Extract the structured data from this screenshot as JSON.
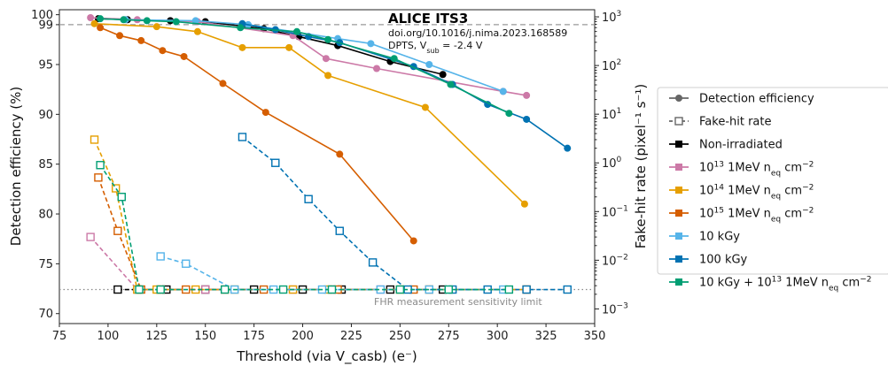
{
  "chart_data": {
    "type": "line",
    "xlabel": "Threshold (via V_casb) (e⁻)",
    "ylabel_left": "Detection efficiency (%)",
    "ylabel_right": "Fake-hit rate (pixel⁻¹ s⁻¹)",
    "xlim": [
      75,
      350
    ],
    "ylim_left": [
      69,
      100.5
    ],
    "ylim_right_log": [
      0.0005,
      1400
    ],
    "x_ticks": [
      75,
      100,
      125,
      150,
      175,
      200,
      225,
      250,
      275,
      300,
      325,
      350
    ],
    "y_left_ticks": [
      70,
      75,
      80,
      85,
      90,
      95,
      99,
      100
    ],
    "y_right_ticks": [
      {
        "value": 0.001,
        "base": "10",
        "exp": "−3"
      },
      {
        "value": 0.01,
        "base": "10",
        "exp": "−2"
      },
      {
        "value": 0.1,
        "base": "10",
        "exp": "−1"
      },
      {
        "value": 1,
        "base": "10",
        "exp": "0"
      },
      {
        "value": 10,
        "base": "10",
        "exp": "1"
      },
      {
        "value": 100,
        "base": "10",
        "exp": "2"
      },
      {
        "value": 1000,
        "base": "10",
        "exp": "3"
      }
    ],
    "reference_lines": [
      {
        "axis": "left",
        "value": 99,
        "style": "dashed",
        "color": "#999999"
      },
      {
        "axis": "right",
        "value": 0.0025,
        "style": "dotted",
        "color": "#888888",
        "label": "FHR measurement sensitivity limit"
      }
    ],
    "annotation": {
      "title": "ALICE ITS3",
      "doi": "doi.org/10.1016/j.nima.2023.168589",
      "condition_prefix": "DPTS, V",
      "condition_sub": "sub",
      "condition_suffix": " = -2.4 V"
    },
    "legend": {
      "placement": "right",
      "style_items": [
        {
          "label": "Detection efficiency",
          "style": "efficiency"
        },
        {
          "label": "Fake-hit rate",
          "style": "fhr"
        }
      ],
      "series_items": [
        {
          "key": "nonirr",
          "parts": [
            [
              "Non-irradiated",
              "normal"
            ]
          ]
        },
        {
          "key": "e13",
          "parts": [
            [
              "10",
              "normal"
            ],
            [
              "13",
              "sup"
            ],
            [
              " 1MeV n",
              "normal"
            ],
            [
              "eq",
              "sub"
            ],
            [
              " cm",
              "normal"
            ],
            [
              "−2",
              "sup"
            ]
          ]
        },
        {
          "key": "e14",
          "parts": [
            [
              "10",
              "normal"
            ],
            [
              "14",
              "sup"
            ],
            [
              " 1MeV n",
              "normal"
            ],
            [
              "eq",
              "sub"
            ],
            [
              " cm",
              "normal"
            ],
            [
              "−2",
              "sup"
            ]
          ]
        },
        {
          "key": "e15",
          "parts": [
            [
              "10",
              "normal"
            ],
            [
              "15",
              "sup"
            ],
            [
              " 1MeV n",
              "normal"
            ],
            [
              "eq",
              "sub"
            ],
            [
              " cm",
              "normal"
            ],
            [
              "−2",
              "sup"
            ]
          ]
        },
        {
          "key": "k10",
          "parts": [
            [
              "10 kGy",
              "normal"
            ]
          ]
        },
        {
          "key": "k100",
          "parts": [
            [
              "100 kGy",
              "normal"
            ]
          ]
        },
        {
          "key": "mix",
          "parts": [
            [
              "10 kGy + 10",
              "normal"
            ],
            [
              "13",
              "sup"
            ],
            [
              " 1MeV n",
              "normal"
            ],
            [
              "eq",
              "sub"
            ],
            [
              " cm",
              "normal"
            ],
            [
              "−2",
              "sup"
            ]
          ]
        }
      ]
    },
    "series": [
      {
        "key": "nonirr",
        "color": "#000000",
        "efficiency": {
          "x": [
            95,
            110,
            132,
            150,
            180,
            198,
            218,
            245,
            272
          ],
          "y": [
            99.6,
            99.5,
            99.4,
            99.3,
            98.6,
            97.8,
            96.9,
            95.3,
            94.0
          ]
        },
        "fhr": {
          "x": [
            105,
            130,
            150,
            175,
            200,
            220,
            245,
            272
          ],
          "y": [
            0.0025,
            0.0025,
            0.0025,
            0.0025,
            0.0025,
            0.0025,
            0.0025,
            0.0025
          ]
        }
      },
      {
        "key": "e13",
        "color": "#cc79a7",
        "efficiency": {
          "x": [
            91,
            115,
            146,
            195,
            212,
            238,
            303,
            315
          ],
          "y": [
            99.7,
            99.5,
            99.3,
            97.9,
            95.6,
            94.6,
            92.3,
            91.9
          ]
        },
        "fhr": {
          "x": [
            91,
            115,
            150,
            195,
            215,
            240,
            265,
            315
          ],
          "y": [
            0.03,
            0.0025,
            0.0025,
            0.0025,
            0.0025,
            0.0025,
            0.0025,
            0.0025
          ]
        }
      },
      {
        "key": "e14",
        "color": "#e69f00",
        "efficiency": {
          "x": [
            93,
            125,
            146,
            169,
            193,
            213,
            263,
            314
          ],
          "y": [
            99.1,
            98.8,
            98.3,
            96.7,
            96.7,
            93.9,
            90.7,
            81.0
          ]
        },
        "fhr": {
          "x": [
            93,
            104,
            115,
            125,
            145,
            165,
            195,
            213,
            250,
            265,
            315
          ],
          "y": [
            3.0,
            0.3,
            0.0025,
            0.0025,
            0.0025,
            0.0025,
            0.0025,
            0.0025,
            0.0025,
            0.0025,
            0.0025
          ]
        }
      },
      {
        "key": "e15",
        "color": "#d55e00",
        "efficiency": {
          "x": [
            96,
            106,
            117,
            128,
            139,
            159,
            181,
            219,
            257
          ],
          "y": [
            98.7,
            97.9,
            97.4,
            96.4,
            95.8,
            93.1,
            90.2,
            86.0,
            77.3
          ]
        },
        "fhr": {
          "x": [
            95,
            105,
            117,
            127,
            140,
            160,
            180,
            218,
            257
          ],
          "y": [
            0.5,
            0.04,
            0.0025,
            0.0025,
            0.0025,
            0.0025,
            0.0025,
            0.0025,
            0.0025
          ]
        }
      },
      {
        "key": "k10",
        "color": "#56b4e9",
        "efficiency": {
          "x": [
            109,
            145,
            172,
            218,
            235,
            265,
            303
          ],
          "y": [
            99.5,
            99.4,
            99.0,
            97.6,
            97.1,
            95.0,
            92.3
          ]
        },
        "fhr": {
          "x": [
            127,
            140,
            165,
            185,
            210,
            240,
            265,
            303
          ],
          "y": [
            0.012,
            0.0085,
            0.0025,
            0.0025,
            0.0025,
            0.0025,
            0.0025,
            0.0025
          ]
        }
      },
      {
        "key": "k100",
        "color": "#0072b2",
        "efficiency": {
          "x": [
            169,
            186,
            203,
            219,
            257,
            277,
            295,
            315,
            336
          ],
          "y": [
            99.1,
            98.5,
            97.8,
            97.2,
            94.8,
            93.0,
            91.0,
            89.5,
            86.6
          ]
        },
        "fhr": {
          "x": [
            169,
            186,
            203,
            219,
            236,
            254,
            277,
            295,
            315,
            336
          ],
          "y": [
            3.4,
            1.0,
            0.18,
            0.04,
            0.009,
            0.0025,
            0.0025,
            0.0025,
            0.0025,
            0.0025
          ]
        }
      },
      {
        "key": "mix",
        "color": "#009e73",
        "efficiency": {
          "x": [
            96,
            108,
            120,
            135,
            168,
            197,
            213,
            247,
            276,
            306
          ],
          "y": [
            99.6,
            99.5,
            99.4,
            99.3,
            98.7,
            98.3,
            97.5,
            95.6,
            93.0,
            90.1
          ]
        },
        "fhr": {
          "x": [
            96,
            107,
            116,
            127,
            160,
            190,
            215,
            250,
            275,
            306
          ],
          "y": [
            0.9,
            0.2,
            0.0025,
            0.0025,
            0.0025,
            0.0025,
            0.0025,
            0.0025,
            0.0025,
            0.0025
          ]
        }
      }
    ]
  }
}
